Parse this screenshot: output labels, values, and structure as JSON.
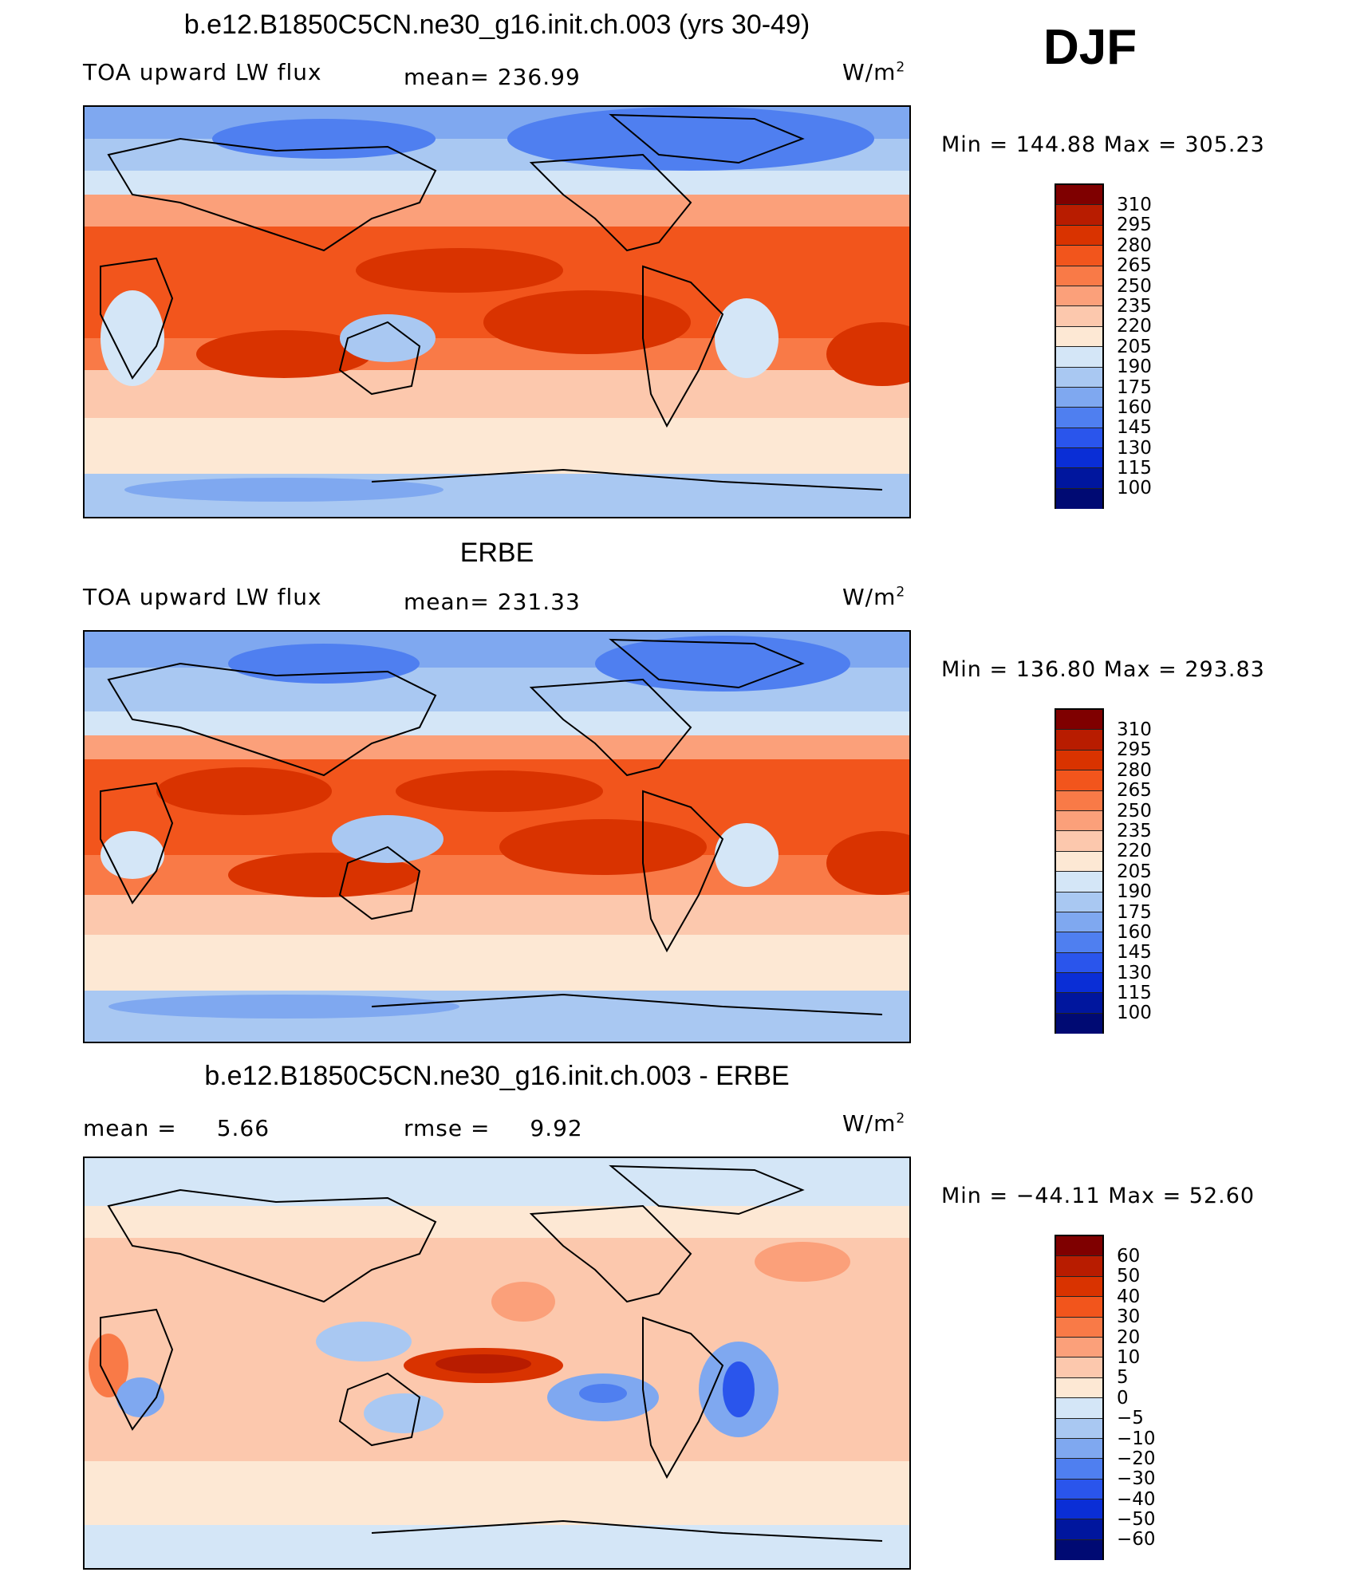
{
  "season": "DJF",
  "panels": [
    {
      "title": "b.e12.B1850C5CN.ne30_g16.init.ch.003 (yrs 30-49)",
      "left_label": "TOA upward LW flux",
      "mean_label": "mean=",
      "mean_value": "236.99",
      "units": "W/m",
      "units_sup": "2",
      "min_max": "Min  =  144.88  Max  =  305.23",
      "colorbar_labels": [
        "310",
        "295",
        "280",
        "265",
        "250",
        "235",
        "220",
        "205",
        "190",
        "175",
        "160",
        "145",
        "130",
        "115",
        "100"
      ]
    },
    {
      "title": "ERBE",
      "left_label": "TOA upward LW flux",
      "mean_label": "mean=",
      "mean_value": "231.33",
      "units": "W/m",
      "units_sup": "2",
      "min_max": "Min  =  136.80  Max  =  293.83",
      "colorbar_labels": [
        "310",
        "295",
        "280",
        "265",
        "250",
        "235",
        "220",
        "205",
        "190",
        "175",
        "160",
        "145",
        "130",
        "115",
        "100"
      ]
    },
    {
      "title": "b.e12.B1850C5CN.ne30_g16.init.ch.003 - ERBE",
      "left_label": "mean  =",
      "left_value": "5.66",
      "rmse_label": "rmse  =",
      "rmse_value": "9.92",
      "units": "W/m",
      "units_sup": "2",
      "min_max": "Min  =  −44.11  Max  =    52.60",
      "colorbar_labels": [
        "60",
        "50",
        "40",
        "30",
        "20",
        "10",
        "5",
        "0",
        "−5",
        "−10",
        "−20",
        "−30",
        "−40",
        "−50",
        "−60"
      ]
    }
  ],
  "colors": {
    "colorbar": [
      "#7f0000",
      "#b81c00",
      "#d93300",
      "#f2551c",
      "#f97a47",
      "#fba07a",
      "#fcc8ad",
      "#fde8d4",
      "#d4e6f7",
      "#a9c8f2",
      "#7fa8f0",
      "#4f7ff0",
      "#2a55ec",
      "#0a2ed6",
      "#00169e",
      "#000a73"
    ],
    "ocean_tropics": "#e54a17",
    "land_line": "#000000"
  }
}
